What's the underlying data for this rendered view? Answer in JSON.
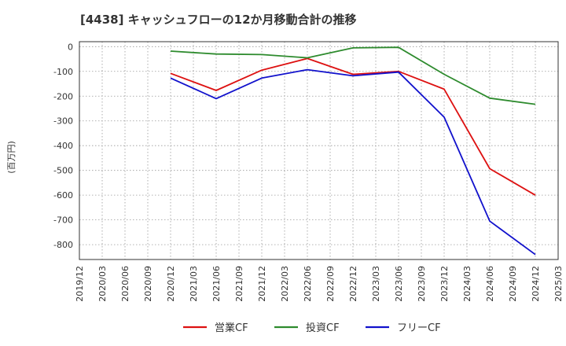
{
  "chart_data": {
    "type": "line",
    "title": "[4438]  キャッシュフローの12か月移動合計の推移",
    "ylabel": "(百万円)",
    "xlabel": "",
    "ylim": [
      -860,
      20
    ],
    "yticks": [
      0,
      -100,
      -200,
      -300,
      -400,
      -500,
      -600,
      -700,
      -800
    ],
    "ytick_labels": [
      "0",
      "-100",
      "-200",
      "-300",
      "-400",
      "-500",
      "-600",
      "-700",
      "-800"
    ],
    "categories": [
      "2019/12",
      "2020/03",
      "2020/06",
      "2020/09",
      "2020/12",
      "2021/03",
      "2021/06",
      "2021/09",
      "2021/12",
      "2022/03",
      "2022/06",
      "2022/09",
      "2022/12",
      "2023/03",
      "2023/06",
      "2023/09",
      "2023/12",
      "2024/03",
      "2024/06",
      "2024/09",
      "2024/12",
      "2025/03"
    ],
    "grid": true,
    "legend_position": "bottom",
    "series": [
      {
        "name": "営業CF",
        "color": "#dd1111",
        "values": [
          null,
          null,
          null,
          null,
          -108,
          null,
          -177,
          null,
          -95,
          null,
          -48,
          null,
          -112,
          null,
          -100,
          null,
          -172,
          null,
          -493,
          null,
          -600,
          null
        ]
      },
      {
        "name": "投資CF",
        "color": "#2e8b2e",
        "values": [
          null,
          null,
          null,
          null,
          -18,
          null,
          -30,
          null,
          -32,
          null,
          -45,
          null,
          -5,
          null,
          -3,
          null,
          -112,
          null,
          -208,
          null,
          -233,
          null
        ]
      },
      {
        "name": "フリーCF",
        "color": "#1111cc",
        "values": [
          null,
          null,
          null,
          null,
          -127,
          null,
          -210,
          null,
          -127,
          null,
          -93,
          null,
          -118,
          null,
          -103,
          null,
          -285,
          null,
          -705,
          null,
          -840,
          null
        ]
      }
    ]
  }
}
